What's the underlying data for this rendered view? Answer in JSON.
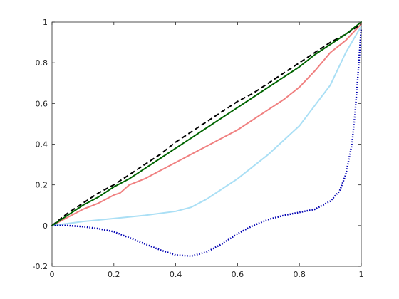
{
  "chart_data": {
    "type": "line",
    "title": "",
    "xlabel": "",
    "ylabel": "",
    "xlim": [
      0,
      1
    ],
    "ylim": [
      -0.2,
      1
    ],
    "grid": false,
    "legend": null,
    "x_ticks": [
      "0",
      "0.2",
      "0.4",
      "0.6",
      "0.8",
      "1"
    ],
    "y_ticks": [
      "-0.2",
      "0",
      "0.2",
      "0.4",
      "0.6",
      "0.8",
      "1"
    ],
    "series": [
      {
        "color": "#f08080",
        "style": "solid",
        "x": [
          0,
          0.05,
          0.1,
          0.15,
          0.2,
          0.22,
          0.25,
          0.3,
          0.35,
          0.4,
          0.45,
          0.5,
          0.55,
          0.6,
          0.65,
          0.7,
          0.75,
          0.8,
          0.85,
          0.9,
          0.95,
          1.0
        ],
        "y": [
          0,
          0.04,
          0.08,
          0.11,
          0.15,
          0.16,
          0.2,
          0.23,
          0.27,
          0.31,
          0.35,
          0.39,
          0.43,
          0.47,
          0.52,
          0.57,
          0.62,
          0.68,
          0.76,
          0.85,
          0.91,
          0.99
        ]
      },
      {
        "color": "#aadff5",
        "style": "solid",
        "x": [
          0,
          0.1,
          0.2,
          0.3,
          0.4,
          0.45,
          0.5,
          0.55,
          0.6,
          0.65,
          0.7,
          0.75,
          0.8,
          0.85,
          0.9,
          0.95,
          1.0
        ],
        "y": [
          0,
          0.02,
          0.035,
          0.05,
          0.07,
          0.09,
          0.13,
          0.18,
          0.23,
          0.29,
          0.35,
          0.42,
          0.49,
          0.59,
          0.69,
          0.85,
          0.98
        ]
      },
      {
        "color": "#0000b3",
        "style": "dotted",
        "x": [
          0,
          0.05,
          0.1,
          0.15,
          0.2,
          0.25,
          0.3,
          0.35,
          0.4,
          0.45,
          0.5,
          0.55,
          0.6,
          0.65,
          0.7,
          0.75,
          0.8,
          0.85,
          0.9,
          0.93,
          0.95,
          0.97,
          0.98,
          0.99,
          1.0
        ],
        "y": [
          0,
          0,
          -0.005,
          -0.015,
          -0.03,
          -0.06,
          -0.09,
          -0.12,
          -0.145,
          -0.15,
          -0.13,
          -0.09,
          -0.04,
          0,
          0.03,
          0.05,
          0.065,
          0.08,
          0.12,
          0.17,
          0.25,
          0.4,
          0.55,
          0.75,
          0.97
        ]
      },
      {
        "color": "#000000",
        "style": "dashed",
        "x": [
          0,
          0.05,
          0.1,
          0.15,
          0.2,
          0.25,
          0.3,
          0.35,
          0.4,
          0.45,
          0.5,
          0.55,
          0.6,
          0.65,
          0.7,
          0.75,
          0.8,
          0.85,
          0.9,
          0.95,
          1.0
        ],
        "y": [
          0,
          0.06,
          0.11,
          0.16,
          0.2,
          0.25,
          0.3,
          0.35,
          0.41,
          0.46,
          0.51,
          0.56,
          0.61,
          0.65,
          0.7,
          0.75,
          0.8,
          0.85,
          0.9,
          0.94,
          0.99
        ]
      },
      {
        "color": "#006400",
        "style": "solid",
        "x": [
          0,
          0.05,
          0.1,
          0.15,
          0.2,
          0.25,
          0.3,
          0.35,
          0.4,
          0.45,
          0.5,
          0.55,
          0.6,
          0.65,
          0.7,
          0.75,
          0.8,
          0.85,
          0.9,
          0.95,
          1.0
        ],
        "y": [
          0,
          0.05,
          0.1,
          0.14,
          0.19,
          0.23,
          0.28,
          0.33,
          0.38,
          0.43,
          0.48,
          0.53,
          0.58,
          0.63,
          0.68,
          0.73,
          0.78,
          0.84,
          0.89,
          0.94,
          1.0
        ]
      }
    ]
  }
}
